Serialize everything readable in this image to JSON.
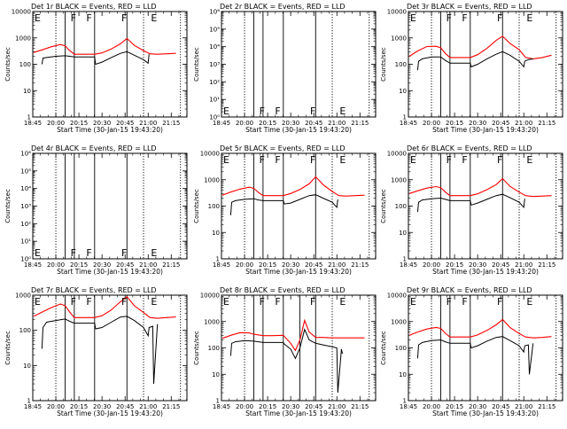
{
  "x_tick_labels": [
    "18:45",
    "20:00",
    "20:15",
    "20:30",
    "20:45",
    "21:00",
    "21:15"
  ],
  "x_label": "Start Time (30-Jan-15 19:43:20)",
  "y_label": "Counts/sec",
  "colors": {
    "events": "#000000",
    "lld": "#ff0000"
  },
  "chart_data": [
    {
      "type": "line",
      "title": "Det 1r BLACK = Events, RED = LLD",
      "yscale": "log",
      "ylim": [
        1,
        10000
      ],
      "y_tick_labels": [
        "1",
        "10",
        "100",
        "1000",
        "10000"
      ],
      "letters": [
        {
          "t": 19.76,
          "text": "E"
        },
        {
          "t": 20.15,
          "text": "F"
        },
        {
          "t": 20.32,
          "text": "F"
        },
        {
          "t": 20.7,
          "text": "F"
        },
        {
          "t": 21.02,
          "text": "E"
        }
      ],
      "solid_lines": [
        20.1,
        20.2,
        20.42,
        20.77
      ],
      "dotted_lines": [
        20.0,
        20.95,
        21.35
      ],
      "series": [
        {
          "role": "lld",
          "x": [
            19.76,
            19.85,
            19.95,
            20.05,
            20.1,
            20.15,
            20.2,
            20.3,
            20.42,
            20.5,
            20.6,
            20.7,
            20.77,
            20.85,
            20.95,
            21.02,
            21.1,
            21.2,
            21.3
          ],
          "y": [
            280,
            350,
            460,
            560,
            500,
            330,
            240,
            240,
            240,
            270,
            380,
            600,
            950,
            520,
            330,
            250,
            240,
            250,
            260
          ]
        },
        {
          "role": "events",
          "x": [
            19.85,
            19.86,
            19.9,
            20.0,
            20.1,
            20.15,
            20.2,
            20.3,
            20.42,
            20.43,
            20.5,
            20.6,
            20.7,
            20.77,
            20.85,
            20.95,
            21.0,
            21.01
          ],
          "y": [
            100,
            170,
            180,
            200,
            210,
            200,
            190,
            190,
            190,
            100,
            120,
            180,
            260,
            300,
            220,
            150,
            110,
            240
          ]
        }
      ]
    },
    {
      "type": "line",
      "title": "Det 2r BLACK = Events, RED = LLD",
      "yscale": "log",
      "ylim": [
        1,
        1000000
      ],
      "y_tick_labels": [
        "10⁰",
        "10¹",
        "10²",
        "10³",
        "10⁴",
        "10⁵",
        "10⁶"
      ],
      "letters": [
        {
          "t": 19.76,
          "text": "E"
        },
        {
          "t": 20.15,
          "text": "F"
        },
        {
          "t": 20.32,
          "text": "F"
        },
        {
          "t": 20.7,
          "text": "F"
        },
        {
          "t": 21.02,
          "text": "E"
        }
      ],
      "solid_lines": [
        20.1,
        20.2,
        20.42,
        20.77
      ],
      "dotted_lines": [
        20.0,
        20.95,
        21.35
      ],
      "series": []
    },
    {
      "type": "line",
      "title": "Det 3r BLACK = Events, RED = LLD",
      "yscale": "log",
      "ylim": [
        1,
        10000
      ],
      "y_tick_labels": [
        "1",
        "10",
        "100",
        "1000",
        "10000"
      ],
      "letters": [
        {
          "t": 19.76,
          "text": "E"
        },
        {
          "t": 20.15,
          "text": "F"
        },
        {
          "t": 20.32,
          "text": "F"
        },
        {
          "t": 20.7,
          "text": "F"
        },
        {
          "t": 21.02,
          "text": "E"
        }
      ],
      "solid_lines": [
        20.1,
        20.2,
        20.42,
        20.77
      ],
      "dotted_lines": [
        20.0,
        20.95,
        21.35
      ],
      "series": [
        {
          "role": "lld",
          "x": [
            19.76,
            19.85,
            19.95,
            20.05,
            20.1,
            20.15,
            20.2,
            20.3,
            20.42,
            20.5,
            20.6,
            20.7,
            20.77,
            20.85,
            20.95,
            21.02,
            21.1,
            21.2,
            21.3
          ],
          "y": [
            200,
            320,
            470,
            480,
            420,
            260,
            180,
            180,
            180,
            230,
            400,
            800,
            1150,
            620,
            360,
            180,
            160,
            180,
            220
          ]
        },
        {
          "role": "events",
          "x": [
            19.85,
            19.86,
            19.9,
            20.0,
            20.1,
            20.15,
            20.2,
            20.3,
            20.42,
            20.43,
            20.5,
            20.6,
            20.7,
            20.77,
            20.85,
            20.95,
            21.0,
            21.01,
            21.05,
            21.1
          ],
          "y": [
            60,
            130,
            160,
            190,
            190,
            140,
            110,
            110,
            110,
            80,
            100,
            160,
            240,
            300,
            220,
            130,
            80,
            130,
            150,
            160
          ]
        }
      ]
    },
    {
      "type": "line",
      "title": "Det 4r BLACK = Events, RED = LLD",
      "yscale": "log",
      "ylim": [
        1,
        1000000
      ],
      "y_tick_labels": [
        "10⁰",
        "10¹",
        "10²",
        "10³",
        "10⁴",
        "10⁵",
        "10⁶"
      ],
      "letters": [
        {
          "t": 19.76,
          "text": "E"
        },
        {
          "t": 20.15,
          "text": "F"
        },
        {
          "t": 20.32,
          "text": "F"
        },
        {
          "t": 20.7,
          "text": "F"
        },
        {
          "t": 21.02,
          "text": "E"
        }
      ],
      "solid_lines": [
        20.1,
        20.2,
        20.42,
        20.77
      ],
      "dotted_lines": [
        20.0,
        20.95,
        21.35
      ],
      "series": []
    },
    {
      "type": "line",
      "title": "Det 5r BLACK = Events, RED = LLD",
      "yscale": "log",
      "ylim": [
        1,
        10000
      ],
      "y_tick_labels": [
        "1",
        "10",
        "100",
        "1000",
        "10000"
      ],
      "letters": [
        {
          "t": 19.76,
          "text": "E"
        },
        {
          "t": 20.15,
          "text": "F"
        },
        {
          "t": 20.32,
          "text": "F"
        },
        {
          "t": 20.7,
          "text": "F"
        },
        {
          "t": 21.02,
          "text": "E"
        }
      ],
      "solid_lines": [
        20.1,
        20.2,
        20.42,
        20.77
      ],
      "dotted_lines": [
        20.0,
        20.95,
        21.35
      ],
      "series": [
        {
          "role": "lld",
          "x": [
            19.76,
            19.85,
            19.95,
            20.05,
            20.1,
            20.15,
            20.2,
            20.3,
            20.42,
            20.5,
            20.6,
            20.7,
            20.77,
            20.85,
            20.95,
            21.02,
            21.1,
            21.2,
            21.3
          ],
          "y": [
            260,
            340,
            440,
            520,
            470,
            330,
            250,
            250,
            250,
            300,
            430,
            700,
            1300,
            650,
            360,
            250,
            240,
            250,
            260
          ]
        },
        {
          "role": "events",
          "x": [
            19.85,
            19.86,
            19.9,
            20.0,
            20.1,
            20.15,
            20.2,
            20.3,
            20.42,
            20.43,
            20.5,
            20.6,
            20.7,
            20.77,
            20.85,
            20.95,
            21.0,
            21.01
          ],
          "y": [
            45,
            140,
            160,
            180,
            190,
            170,
            160,
            160,
            160,
            120,
            130,
            180,
            250,
            270,
            200,
            140,
            90,
            180
          ]
        }
      ]
    },
    {
      "type": "line",
      "title": "Det 6r BLACK = Events, RED = LLD",
      "yscale": "log",
      "ylim": [
        1,
        10000
      ],
      "y_tick_labels": [
        "1",
        "10",
        "100",
        "1000",
        "10000"
      ],
      "letters": [
        {
          "t": 19.76,
          "text": "E"
        },
        {
          "t": 20.15,
          "text": "F"
        },
        {
          "t": 20.32,
          "text": "F"
        },
        {
          "t": 20.7,
          "text": "F"
        },
        {
          "t": 21.02,
          "text": "E"
        }
      ],
      "solid_lines": [
        20.1,
        20.2,
        20.42,
        20.77
      ],
      "dotted_lines": [
        20.0,
        20.95,
        21.35
      ],
      "series": [
        {
          "role": "lld",
          "x": [
            19.76,
            19.85,
            19.95,
            20.05,
            20.1,
            20.15,
            20.2,
            20.3,
            20.42,
            20.5,
            20.6,
            20.7,
            20.77,
            20.85,
            20.95,
            21.02,
            21.1,
            21.2,
            21.3
          ],
          "y": [
            300,
            380,
            480,
            550,
            500,
            340,
            250,
            250,
            250,
            290,
            420,
            650,
            1100,
            560,
            340,
            250,
            230,
            240,
            250
          ]
        },
        {
          "role": "events",
          "x": [
            19.85,
            19.86,
            19.9,
            20.0,
            20.1,
            20.15,
            20.2,
            20.3,
            20.42,
            20.43,
            20.5,
            20.6,
            20.7,
            20.77,
            20.85,
            20.95,
            21.0,
            21.01
          ],
          "y": [
            60,
            140,
            170,
            190,
            200,
            180,
            160,
            160,
            160,
            110,
            130,
            180,
            250,
            280,
            210,
            140,
            90,
            190
          ]
        }
      ]
    },
    {
      "type": "line",
      "title": "Det 7r BLACK = Events, RED = LLD",
      "yscale": "log",
      "ylim": [
        1,
        1000
      ],
      "y_tick_labels": [
        "1",
        "10",
        "100",
        "1000"
      ],
      "letters": [
        {
          "t": 19.76,
          "text": "E"
        },
        {
          "t": 20.15,
          "text": "F"
        },
        {
          "t": 20.32,
          "text": "F"
        },
        {
          "t": 20.7,
          "text": "F"
        },
        {
          "t": 21.02,
          "text": "E"
        }
      ],
      "solid_lines": [
        20.1,
        20.2,
        20.42,
        20.77
      ],
      "dotted_lines": [
        20.0,
        20.95,
        21.35
      ],
      "series": [
        {
          "role": "lld",
          "x": [
            19.76,
            19.85,
            19.95,
            20.05,
            20.1,
            20.15,
            20.2,
            20.3,
            20.42,
            20.5,
            20.6,
            20.7,
            20.77,
            20.85,
            20.95,
            21.02,
            21.1,
            21.2,
            21.3
          ],
          "y": [
            250,
            330,
            440,
            560,
            500,
            330,
            230,
            230,
            230,
            260,
            380,
            650,
            900,
            500,
            320,
            230,
            220,
            230,
            240
          ]
        },
        {
          "role": "events",
          "x": [
            19.85,
            19.86,
            19.9,
            20.0,
            20.1,
            20.15,
            20.2,
            20.3,
            20.42,
            20.43,
            20.5,
            20.6,
            20.7,
            20.77,
            20.85,
            20.95,
            21.0,
            21.01,
            21.05,
            21.06,
            21.1
          ],
          "y": [
            30,
            120,
            170,
            190,
            210,
            180,
            160,
            160,
            160,
            110,
            120,
            170,
            240,
            250,
            190,
            120,
            70,
            120,
            130,
            3,
            150
          ]
        }
      ]
    },
    {
      "type": "line",
      "title": "Det 8r BLACK = Events, RED = LLD",
      "yscale": "log",
      "ylim": [
        1,
        10000
      ],
      "y_tick_labels": [
        "1",
        "10",
        "100",
        "1000",
        "10000"
      ],
      "letters": [
        {
          "t": 19.76,
          "text": "E"
        },
        {
          "t": 20.15,
          "text": "F"
        },
        {
          "t": 20.32,
          "text": "F"
        },
        {
          "t": 20.7,
          "text": "F"
        },
        {
          "t": 21.02,
          "text": "E"
        }
      ],
      "solid_lines": [
        20.1,
        20.2,
        20.42,
        20.6,
        20.77
      ],
      "dotted_lines": [
        20.0,
        20.95,
        21.35
      ],
      "series": [
        {
          "role": "lld",
          "x": [
            19.76,
            19.85,
            19.95,
            20.05,
            20.1,
            20.2,
            20.3,
            20.42,
            20.5,
            20.55,
            20.6,
            20.65,
            20.7,
            20.77,
            20.85,
            20.95,
            21.05,
            21.2,
            21.3
          ],
          "y": [
            230,
            300,
            380,
            370,
            330,
            290,
            290,
            300,
            150,
            80,
            200,
            1100,
            400,
            250,
            250,
            240,
            240,
            240,
            240
          ]
        },
        {
          "role": "events",
          "x": [
            19.85,
            19.86,
            19.9,
            20.0,
            20.1,
            20.2,
            20.3,
            20.42,
            20.43,
            20.5,
            20.55,
            20.6,
            20.65,
            20.7,
            20.77,
            20.85,
            20.95,
            21.0,
            21.01,
            21.05,
            21.06
          ],
          "y": [
            50,
            150,
            170,
            190,
            180,
            160,
            160,
            160,
            140,
            90,
            40,
            100,
            500,
            200,
            150,
            130,
            110,
            100,
            2,
            90,
            60
          ]
        }
      ]
    },
    {
      "type": "line",
      "title": "Det 9r BLACK = Events, RED = LLD",
      "yscale": "log",
      "ylim": [
        1,
        10000
      ],
      "y_tick_labels": [
        "1",
        "10",
        "100",
        "1000",
        "10000"
      ],
      "letters": [
        {
          "t": 19.76,
          "text": "E"
        },
        {
          "t": 20.15,
          "text": "F"
        },
        {
          "t": 20.32,
          "text": "F"
        },
        {
          "t": 20.7,
          "text": "F"
        },
        {
          "t": 21.02,
          "text": "E"
        }
      ],
      "solid_lines": [
        20.1,
        20.2,
        20.42,
        20.77
      ],
      "dotted_lines": [
        20.0,
        20.95,
        21.35
      ],
      "series": [
        {
          "role": "lld",
          "x": [
            19.76,
            19.85,
            19.95,
            20.05,
            20.1,
            20.15,
            20.2,
            20.3,
            20.42,
            20.5,
            20.6,
            20.7,
            20.77,
            20.85,
            20.95,
            21.02,
            21.1,
            21.2,
            21.3
          ],
          "y": [
            300,
            400,
            520,
            600,
            550,
            360,
            260,
            260,
            260,
            310,
            460,
            750,
            1200,
            600,
            350,
            260,
            240,
            250,
            270
          ]
        },
        {
          "role": "events",
          "x": [
            19.85,
            19.86,
            19.9,
            20.0,
            20.1,
            20.15,
            20.2,
            20.3,
            20.42,
            20.43,
            20.5,
            20.6,
            20.7,
            20.77,
            20.85,
            20.95,
            21.0,
            21.01,
            21.05,
            21.06,
            21.1
          ],
          "y": [
            40,
            130,
            160,
            190,
            200,
            170,
            150,
            150,
            150,
            100,
            120,
            180,
            250,
            270,
            190,
            120,
            70,
            120,
            130,
            10,
            150
          ]
        }
      ]
    }
  ]
}
